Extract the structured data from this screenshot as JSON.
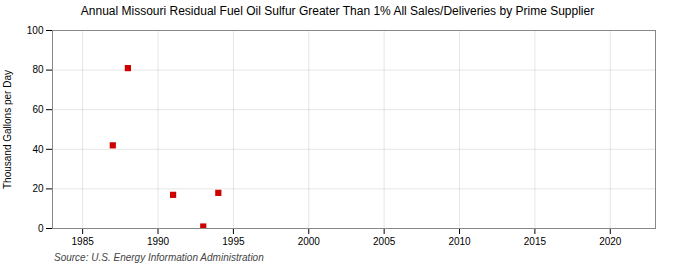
{
  "chart_data": {
    "type": "scatter",
    "title": "Annual Missouri Residual Fuel Oil Sulfur Greater Than 1% All Sales/Deliveries by Prime Supplier",
    "y_label": "Thousand Gallons per Day",
    "source": "Source: U.S. Energy Information Administration",
    "x": [
      1987,
      1988,
      1991,
      1993,
      1994
    ],
    "values": [
      42,
      81,
      17,
      1,
      18
    ],
    "color": "#cc0000",
    "marker": "square",
    "xlim": [
      1983,
      2023
    ],
    "xticks": [
      1985,
      1990,
      1995,
      2000,
      2005,
      2010,
      2015,
      2020
    ],
    "ylim": [
      0,
      100
    ],
    "yticks": [
      0,
      20,
      40,
      60,
      80,
      100
    ],
    "grid": true
  }
}
